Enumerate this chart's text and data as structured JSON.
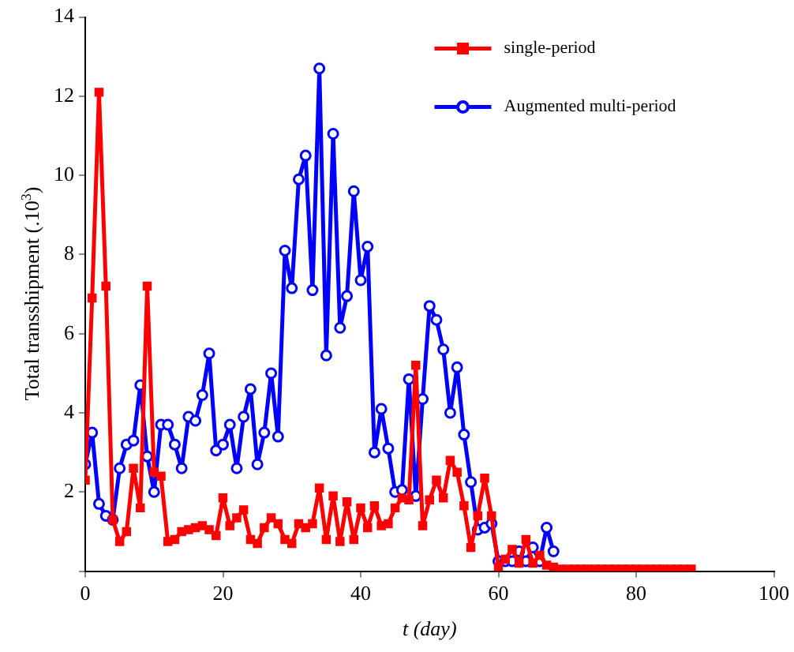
{
  "chart_data": {
    "type": "line",
    "xlabel": "t (day)",
    "ylabel": "Total transshipment (.10$^{3}$)",
    "xlim": [
      0,
      100
    ],
    "xticks": [
      0,
      20,
      40,
      60,
      80,
      100
    ],
    "ylim": [
      0,
      14
    ],
    "yticks": [
      {
        "value": 0,
        "label": null
      },
      2,
      4,
      6,
      8,
      10,
      12,
      14
    ],
    "grid": false,
    "legend": "top right",
    "line_style": "solid",
    "series": [
      {
        "name": "single-period",
        "color": "#ff0000",
        "marker": "square",
        "x": [
          0,
          1,
          2,
          3,
          4,
          5,
          6,
          7,
          8,
          9,
          10,
          11,
          12,
          13,
          14,
          15,
          16,
          17,
          18,
          19,
          20,
          21,
          22,
          23,
          24,
          25,
          26,
          27,
          28,
          29,
          30,
          31,
          32,
          33,
          34,
          35,
          36,
          37,
          38,
          39,
          40,
          41,
          42,
          43,
          44,
          45,
          46,
          47,
          48,
          49,
          50,
          51,
          52,
          53,
          54,
          55,
          56,
          57,
          58,
          59,
          60,
          61,
          62,
          63,
          64,
          65,
          66,
          67,
          68,
          69,
          70,
          71,
          72,
          73,
          74,
          75,
          76,
          77,
          78,
          79,
          80,
          81,
          82,
          83,
          84,
          85,
          86,
          87,
          88
        ],
        "values": [
          2.3,
          6.9,
          12.1,
          7.2,
          1.3,
          0.75,
          1.0,
          2.6,
          1.6,
          7.2,
          2.5,
          2.4,
          0.75,
          0.8,
          1.0,
          1.05,
          1.1,
          1.15,
          1.05,
          0.9,
          1.85,
          1.15,
          1.35,
          1.55,
          0.8,
          0.7,
          1.1,
          1.35,
          1.2,
          0.8,
          0.7,
          1.2,
          1.1,
          1.2,
          2.1,
          0.8,
          1.9,
          0.75,
          1.75,
          0.8,
          1.6,
          1.1,
          1.65,
          1.15,
          1.2,
          1.6,
          1.85,
          1.8,
          5.2,
          1.15,
          1.8,
          2.3,
          1.85,
          2.8,
          2.5,
          1.65,
          0.6,
          1.4,
          2.35,
          1.4,
          0.1,
          0.3,
          0.55,
          0.2,
          0.8,
          0.2,
          0.4,
          0.15,
          0.1,
          0.05,
          0.05,
          0.05,
          0.05,
          0.05,
          0.05,
          0.05,
          0.05,
          0.05,
          0.05,
          0.05,
          0.05,
          0.05,
          0.05,
          0.05,
          0.05,
          0.05,
          0.05,
          0.05,
          0.05
        ]
      },
      {
        "name": "Augmented multi-period",
        "color": "#0000ff",
        "marker": "circle",
        "x": [
          0,
          1,
          2,
          3,
          4,
          5,
          6,
          7,
          8,
          9,
          10,
          11,
          12,
          13,
          14,
          15,
          16,
          17,
          18,
          19,
          20,
          21,
          22,
          23,
          24,
          25,
          26,
          27,
          28,
          29,
          30,
          31,
          32,
          33,
          34,
          35,
          36,
          37,
          38,
          39,
          40,
          41,
          42,
          43,
          44,
          45,
          46,
          47,
          48,
          49,
          50,
          51,
          52,
          53,
          54,
          55,
          56,
          57,
          58,
          59,
          60,
          61,
          62,
          63,
          64,
          65,
          66,
          67,
          68
        ],
        "values": [
          2.7,
          3.5,
          1.7,
          1.4,
          1.3,
          2.6,
          3.2,
          3.3,
          4.7,
          2.9,
          2.0,
          3.7,
          3.7,
          3.2,
          2.6,
          3.9,
          3.8,
          4.45,
          5.5,
          3.05,
          3.2,
          3.7,
          2.6,
          3.9,
          4.6,
          2.7,
          3.5,
          5.0,
          3.4,
          8.1,
          7.15,
          9.9,
          10.5,
          7.1,
          12.7,
          5.45,
          11.05,
          6.15,
          6.95,
          9.6,
          7.35,
          8.2,
          3.0,
          4.1,
          3.1,
          2.0,
          2.05,
          4.85,
          1.9,
          4.35,
          6.7,
          6.35,
          5.6,
          4.0,
          5.15,
          3.45,
          2.25,
          1.05,
          1.1,
          1.2,
          0.25,
          0.25,
          0.25,
          0.5,
          0.25,
          0.6,
          0.25,
          1.1,
          0.5
        ]
      }
    ]
  }
}
